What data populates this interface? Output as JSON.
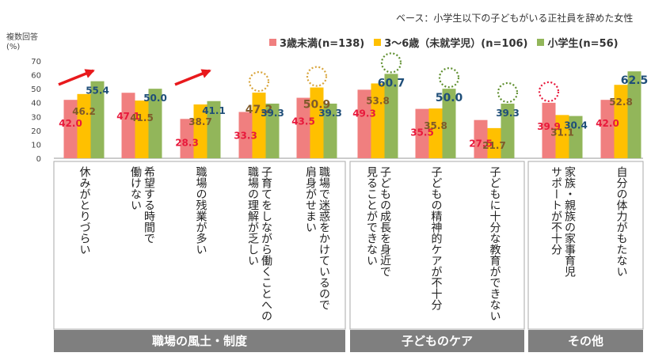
{
  "note": "ベース：小学生以下の子どもがいる正社員を辞めた女性",
  "ylabel": "複数回答\n(%)",
  "colors": {
    "series1": "#f07f7f",
    "series2": "#ffc000",
    "series3": "#92b65a",
    "label1": "#e8193c",
    "label2": "#7f5a2a",
    "label3": "#1f4e79",
    "arrow": "#e8191c",
    "ring_orange": "#d8a43a",
    "ring_green": "#5f8f2f",
    "ring_red": "#e8193c"
  },
  "chart_data": {
    "type": "bar",
    "ylim": [
      0,
      70
    ],
    "yticks": [
      "0",
      "10",
      "20",
      "30",
      "40",
      "50",
      "60",
      "70"
    ],
    "categories": [
      [
        "休みがとりづらい"
      ],
      [
        "希望する時間で",
        "働けない"
      ],
      [
        "職場の残業が多い"
      ],
      [
        "子育てをしながら働くことへの",
        "職場の理解が乏しい"
      ],
      [
        "職場で迷惑をかけているので",
        "肩身がせまい"
      ],
      [
        "子どもの成長を身近で",
        "見ることができない"
      ],
      [
        "子どもの精神的ケアが不十分"
      ],
      [
        "子どもに十分な教育ができない"
      ],
      [
        "家族・親族の家事育児",
        "サポートが不十分"
      ],
      [
        "自分の体力がもたない"
      ]
    ],
    "series": [
      {
        "name": "3歳未満(n=138)",
        "values": [
          42.0,
          47.1,
          28.3,
          33.3,
          43.5,
          49.3,
          35.5,
          27.5,
          39.9,
          42.0
        ],
        "labels": [
          "42.0",
          "47.1",
          "28.3",
          "33.3",
          "43.5",
          "49.3",
          "35.5",
          "27.5",
          "39.9",
          "42.0"
        ]
      },
      {
        "name": "3～6歳（未就学児）(n=106)",
        "values": [
          46.2,
          41.5,
          38.7,
          47.2,
          50.9,
          53.8,
          35.8,
          21.7,
          31.1,
          52.8
        ],
        "labels": [
          "46.2",
          "41.5",
          "38.7",
          "47.2",
          "50.9",
          "53.8",
          "35.8",
          "21.7",
          "31.1",
          "52.8"
        ]
      },
      {
        "name": "小学生(n=56)",
        "values": [
          55.4,
          50.0,
          41.1,
          39.3,
          39.3,
          60.7,
          50.0,
          39.3,
          30.4,
          62.5
        ],
        "labels": [
          "55.4",
          "50.0",
          "41.1",
          "39.3",
          "39.3",
          "60.7",
          "50.0",
          "39.3",
          "30.4",
          "62.5"
        ]
      }
    ],
    "groups": [
      {
        "label": "職場の風土・制度",
        "start": 0,
        "end": 4
      },
      {
        "label": "子どものケア",
        "start": 5,
        "end": 7
      },
      {
        "label": "その他",
        "start": 8,
        "end": 9
      }
    ],
    "annotations": {
      "arrows": [
        0,
        2
      ],
      "rings": [
        {
          "category": 3,
          "series": 1,
          "color": "ring_orange"
        },
        {
          "category": 4,
          "series": 1,
          "color": "ring_orange"
        },
        {
          "category": 5,
          "series": 2,
          "color": "ring_green"
        },
        {
          "category": 6,
          "series": 2,
          "color": "ring_green"
        },
        {
          "category": 7,
          "series": 2,
          "color": "ring_green"
        },
        {
          "category": 8,
          "series": 0,
          "color": "ring_red"
        }
      ]
    }
  }
}
